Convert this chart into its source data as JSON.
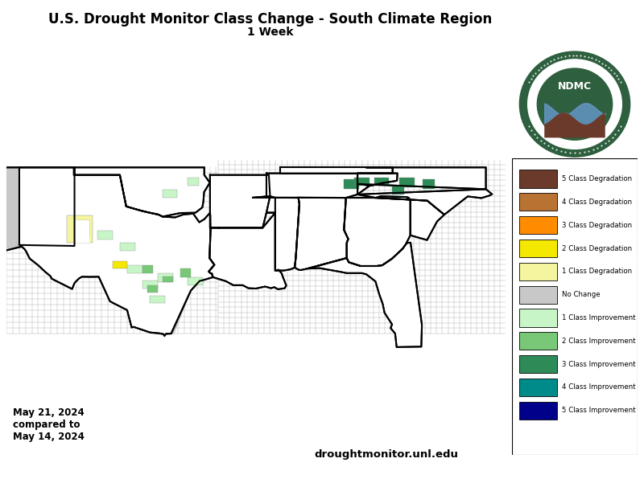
{
  "title_line1": "U.S. Drought Monitor Class Change - South Climate Region",
  "title_line2": "1 Week",
  "date_text": "May 21, 2024\ncompared to\nMay 14, 2024",
  "website_text": "droughtmonitor.unl.edu",
  "legend_labels": [
    "5 Class Degradation",
    "4 Class Degradation",
    "3 Class Degradation",
    "2 Class Degradation",
    "1 Class Degradation",
    "No Change",
    "1 Class Improvement",
    "2 Class Improvement",
    "3 Class Improvement",
    "4 Class Improvement",
    "5 Class Improvement"
  ],
  "legend_colors": [
    "#6b3a2a",
    "#b87333",
    "#ff8c00",
    "#f5e800",
    "#f5f5a0",
    "#c8c8c8",
    "#c8f5c8",
    "#78c878",
    "#2e8b57",
    "#008b8b",
    "#00008b"
  ],
  "bg_color": "#ffffff",
  "figsize": [
    8.0,
    5.96
  ],
  "dpi": 100,
  "map_xlim": [
    -107.5,
    -74.5
  ],
  "map_ylim": [
    24.0,
    39.5
  ],
  "ndmc_outer_color": "#2e5f3e",
  "ndmc_inner_color": "#2e5f3e",
  "ndmc_text_color": "#ffffff",
  "ndmc_wave_color": "#6699cc"
}
